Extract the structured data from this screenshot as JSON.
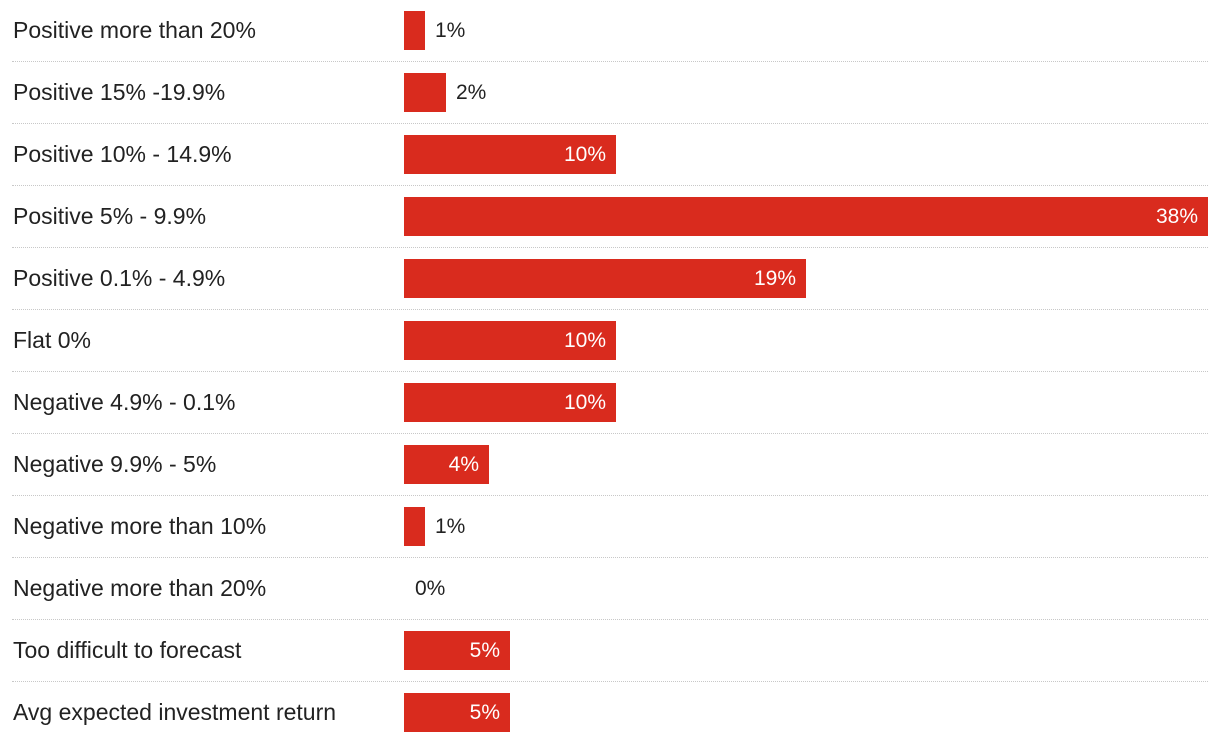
{
  "chart_data": {
    "type": "bar",
    "orientation": "horizontal",
    "categories": [
      "Positive more than 20%",
      "Positive 15% -19.9%",
      "Positive 10% - 14.9%",
      "Positive 5% - 9.9%",
      "Positive 0.1% - 4.9%",
      "Flat 0%",
      "Negative 4.9% - 0.1%",
      "Negative 9.9% - 5%",
      "Negative more than 10%",
      "Negative more than 20%",
      "Too difficult to forecast",
      "Avg expected investment return"
    ],
    "values": [
      1,
      2,
      10,
      38,
      19,
      10,
      10,
      4,
      1,
      0,
      5,
      5
    ],
    "value_labels": [
      "1%",
      "2%",
      "10%",
      "38%",
      "19%",
      "10%",
      "10%",
      "4%",
      "1%",
      "0%",
      "5%",
      "5%"
    ],
    "xlim": [
      0,
      38
    ],
    "bar_color": "#d92b1e",
    "grid": false,
    "title": "",
    "xlabel": "",
    "ylabel": ""
  }
}
